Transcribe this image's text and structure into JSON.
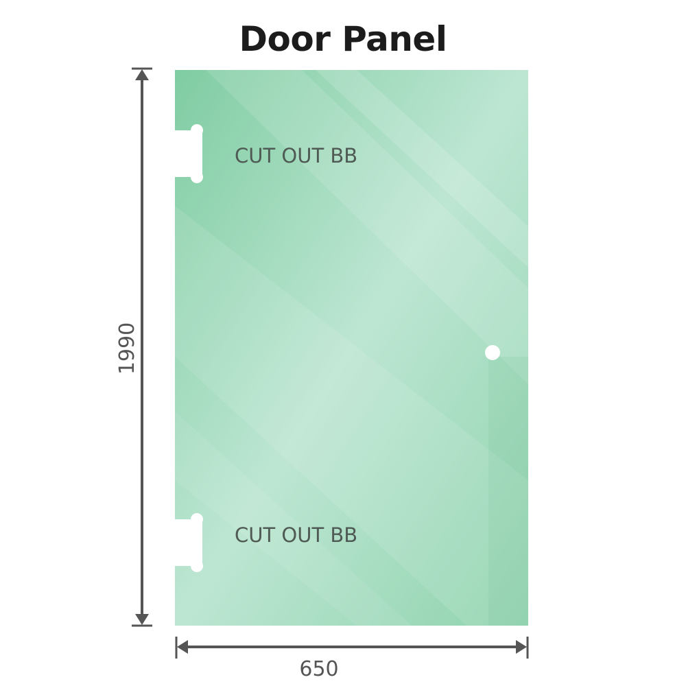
{
  "title": "Door Panel",
  "panel": {
    "height_label": "1990",
    "width_label": "650",
    "cutouts": [
      {
        "label": "CUT OUT BB"
      },
      {
        "label": "CUT OUT BB"
      }
    ]
  },
  "colors": {
    "glass": "#86cfa8",
    "glass_light": "#bde6d2",
    "dimension_line": "#555555"
  }
}
